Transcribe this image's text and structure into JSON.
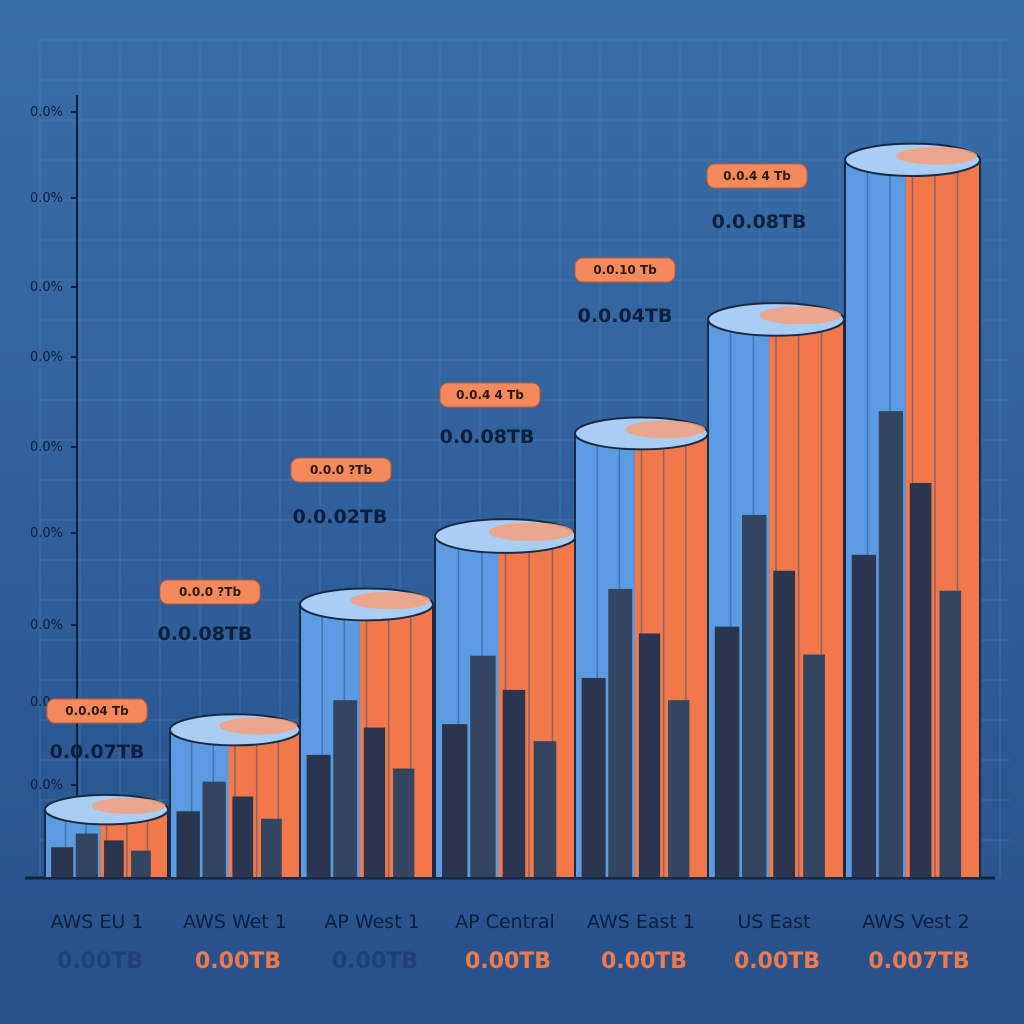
{
  "colors": {
    "background": "#3366a3",
    "blue": "#5b9be2",
    "blue_light": "#a9cdf3",
    "orange": "#f0784a",
    "orange_light": "#f6a07a",
    "dark": "#2a3650",
    "dark_alt": "#344560",
    "axis": "#13213a",
    "grid": "#4a7fb8",
    "tag_fill": "#f48a5c",
    "text_dark": "#0d1f3c",
    "text_value_blue": "#1e3f7a",
    "text_value_orange": "#f07a4c"
  },
  "chart_data": {
    "type": "bar",
    "title": "",
    "xlabel": "",
    "ylabel": "",
    "grid": true,
    "y_ticks": [
      "0.0%",
      "0.0%",
      "0.0%",
      "0.0%",
      "0.0%",
      "0.0%",
      "0.0%",
      "0.0",
      "0.0%"
    ],
    "categories": [
      "AWS EU 1",
      "AWS Wet 1",
      "AP West 1",
      "AP Central",
      "AWS East 1",
      "US East",
      "AWS Vest 2"
    ],
    "bottom_values": [
      "0.00TB",
      "0.00TB",
      "0.00TB",
      "0.00TB",
      "0.00TB",
      "0.00TB",
      "0.007TB"
    ],
    "bottom_value_colors": [
      "blue",
      "orange",
      "blue",
      "orange",
      "orange",
      "orange",
      "orange"
    ],
    "top_values": [
      "0.0.07TB",
      "0.0.08TB",
      "0.0.02TB",
      "0.0.08TB",
      "0.0.04TB",
      "0.0.08TB",
      ""
    ],
    "tags": [
      "0.0.04 Tb",
      "0.0.0 ?Tb",
      "0.0.0 ?Tb",
      "0.0.4 4 Tb",
      "0.0.10 Tb",
      "0.0.4 4 Tb",
      ""
    ],
    "values": [
      0.6,
      1.3,
      2.4,
      3.0,
      3.9,
      4.9,
      6.3
    ],
    "ylim": [
      0,
      7
    ]
  }
}
